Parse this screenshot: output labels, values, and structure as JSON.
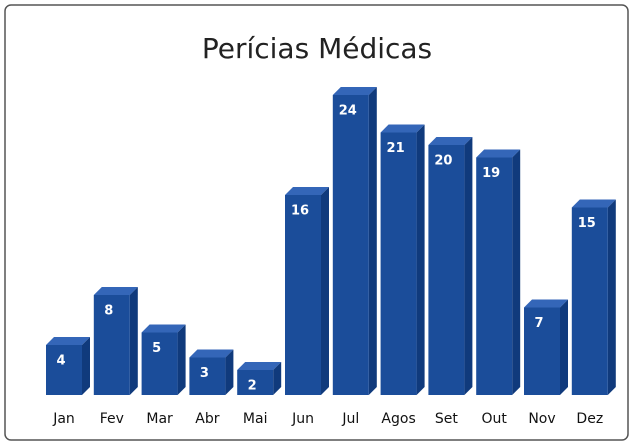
{
  "chart_data": {
    "type": "bar3d",
    "title": "Perícias Médicas",
    "categories": [
      "Jan",
      "Fev",
      "Mar",
      "Abr",
      "Mai",
      "Jun",
      "Jul",
      "Agos",
      "Set",
      "Out",
      "Nov",
      "Dez"
    ],
    "values": [
      4,
      8,
      5,
      3,
      2,
      16,
      24,
      21,
      20,
      19,
      7,
      15
    ],
    "color": "#1b4d9a"
  }
}
